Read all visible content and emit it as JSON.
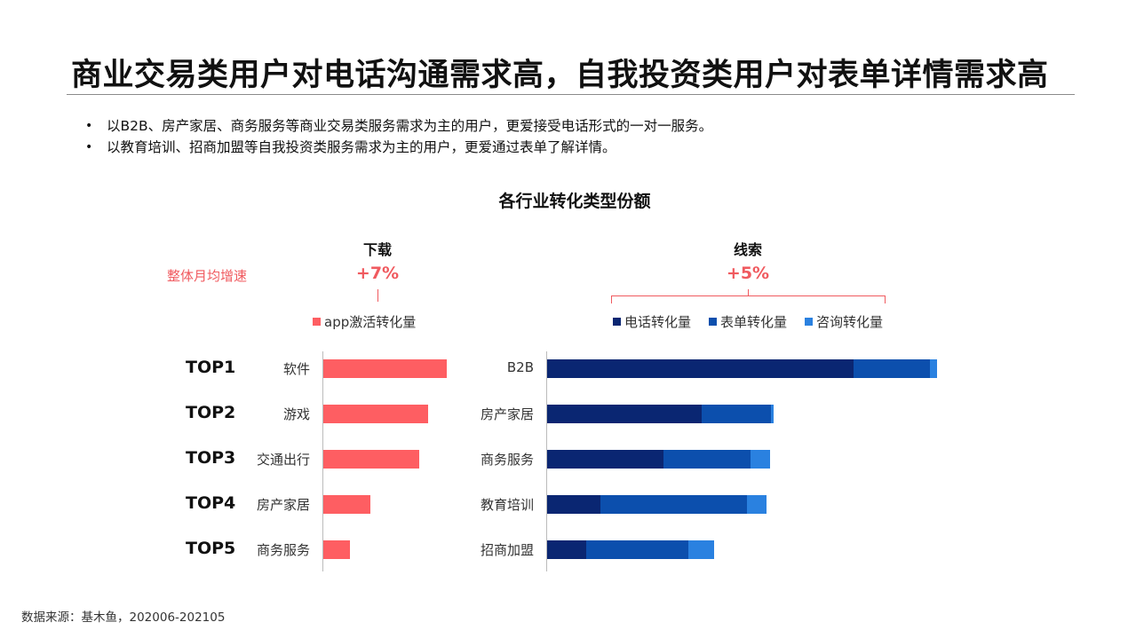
{
  "title": "商业交易类用户对电话沟通需求高，自我投资类用户对表单详情需求高",
  "bullets": [
    "以B2B、房产家居、商务服务等商业交易类服务需求为主的用户，更爱接受电话形式的一对一服务。",
    "以教育培训、招商加盟等自我投资类服务需求为主的用户，更爱通过表单了解详情。"
  ],
  "bullet_symbol": "•",
  "growth_label": "整体月均增速",
  "source": "数据来源：基木鱼，202006-202105",
  "colors": {
    "download": "#fe5e62",
    "phone": "#0a2672",
    "form": "#0c4fad",
    "consult": "#2a81e0",
    "growth": "#f05a5f"
  },
  "chart_data": {
    "type": "bar",
    "title": "各行业转化类型份额",
    "groups": [
      {
        "name": "下载",
        "growth": "+7%",
        "ranks": [
          "TOP1",
          "TOP2",
          "TOP3",
          "TOP4",
          "TOP5"
        ],
        "categories": [
          "软件",
          "游戏",
          "交通出行",
          "房产家居",
          "商务服务"
        ],
        "series": [
          {
            "name": "app激活转化量",
            "values": [
              139,
              118,
              108,
              53,
              30
            ]
          }
        ]
      },
      {
        "name": "线索",
        "growth": "+5%",
        "categories": [
          "B2B",
          "房产家居",
          "商务服务",
          "教育培训",
          "招商加盟"
        ],
        "series": [
          {
            "name": "电话转化量",
            "values": [
              345,
              174,
              131,
              60,
              44
            ]
          },
          {
            "name": "表单转化量",
            "values": [
              86,
              78,
              98,
              165,
              115
            ]
          },
          {
            "name": "咨询转化量",
            "values": [
              8,
              3,
              22,
              22,
              29
            ]
          }
        ]
      }
    ]
  }
}
